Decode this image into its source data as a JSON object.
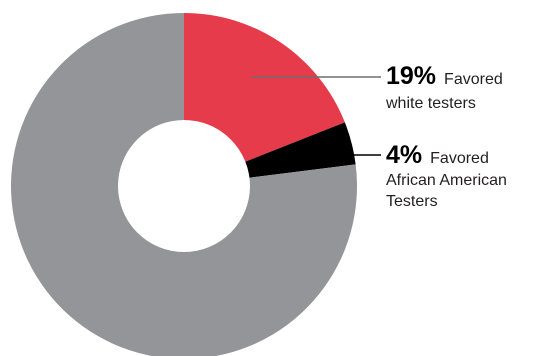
{
  "chart_data": {
    "type": "pie",
    "style": "donut",
    "slices": [
      {
        "value": 19,
        "color": "#e63b4b"
      },
      {
        "value": 4,
        "color": "#000000"
      },
      {
        "value": 77,
        "color": "#939598"
      }
    ],
    "annotations": [
      {
        "percent": "19%",
        "lines": [
          "Favored",
          "white testers"
        ]
      },
      {
        "percent": "4%",
        "lines": [
          "Favored",
          "African American",
          "Testers"
        ]
      }
    ],
    "leader_color": "#6d6e71"
  }
}
